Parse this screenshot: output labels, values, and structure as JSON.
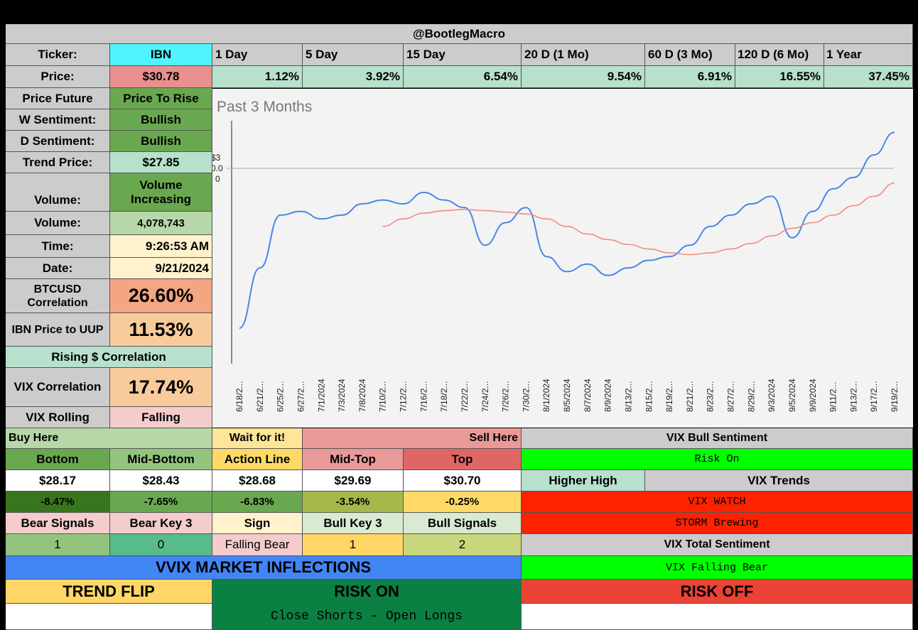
{
  "header": {
    "title": "@BootlegMacro"
  },
  "ticker": {
    "label": "Ticker:",
    "value": "IBN"
  },
  "periods": {
    "labels": [
      "1 Day",
      "5 Day",
      "15 Day",
      "20 D (1 Mo)",
      "60 D (3 Mo)",
      "120 D (6 Mo)",
      "1 Year"
    ],
    "price_label": "Price:",
    "price_value": "$30.78",
    "changes": [
      "1.12%",
      "3.92%",
      "6.54%",
      "9.54%",
      "6.91%",
      "16.55%",
      "37.45%"
    ]
  },
  "left": {
    "price_future_label": "Price Future",
    "price_future_value": "Price To Rise",
    "w_sent_label": "W Sentiment:",
    "w_sent_value": "Bullish",
    "d_sent_label": "D Sentiment:",
    "d_sent_value": "Bullish",
    "trend_label": "Trend Price:",
    "trend_value": "$27.85",
    "vol_trend_label": "Volume:",
    "vol_trend_value": "Volume Increasing",
    "volume_label": "Volume:",
    "volume_value": "4,078,743",
    "time_label": "Time:",
    "time_value": "9:26:53 AM",
    "date_label": "Date:",
    "date_value": "9/21/2024",
    "btc_label": "BTCUSD Correlation",
    "btc_value": "26.60%",
    "uup_label": "IBN Price to UUP",
    "uup_value": "11.53%",
    "rising": "Rising $ Correlation",
    "vix_corr_label": "VIX Correlation",
    "vix_corr_value": "17.74%",
    "vix_roll_label": "VIX Rolling",
    "vix_roll_value": "Falling"
  },
  "levels": {
    "buy_here": "Buy Here",
    "wait": "Wait for it!",
    "sell_here": "Sell Here",
    "names": [
      "Bottom",
      "Mid-Bottom",
      "Action Line",
      "Mid-Top",
      "Top"
    ],
    "prices": [
      "$28.17",
      "$28.43",
      "$28.68",
      "$29.69",
      "$30.70"
    ],
    "pcts": [
      "-8.47%",
      "-7.65%",
      "-6.83%",
      "-3.54%",
      "-0.25%"
    ],
    "signal_names": [
      "Bear Signals",
      "Bear Key 3",
      "Sign",
      "Bull Key 3",
      "Bull Signals"
    ],
    "signal_values": [
      "1",
      "0",
      "Falling Bear",
      "1",
      "2"
    ]
  },
  "vix": {
    "bull_sentiment_label": "VIX Bull Sentiment",
    "risk_on": "Risk On",
    "higher_high": "Higher High",
    "trends_label": "VIX Trends",
    "watch": "VIX WATCH",
    "storm": "STORM Brewing",
    "total_label": "VIX Total Sentiment",
    "falling_bear": "VIX Falling Bear"
  },
  "vvix": {
    "title": "VVIX MARKET INFLECTIONS",
    "trend_flip": "TREND FLIP",
    "risk_on": "RISK ON",
    "risk_off": "RISK OFF",
    "action": "Close Shorts - Open Longs"
  },
  "colors": {
    "ticker": "#4ff4ff",
    "price": "#e88f8f",
    "mint": "#b7e1cd",
    "green": "#6aa84f",
    "light_green": "#b6d7a8",
    "cream": "#fff2cc",
    "salmon": "#f4a582",
    "peach": "#f9cb9c",
    "pink": "#f4cccc",
    "grey": "#cccccc",
    "bright_green": "#00ff00",
    "red": "#ff2200",
    "dark_green": "#0b8043",
    "blue": "#4285f4",
    "yellow": "#ffd666",
    "orange_red": "#ea4335",
    "price_line": "#4a86e8",
    "ma_line": "#f28b82"
  },
  "chart_data": {
    "type": "line",
    "title": "Past 3 Months",
    "y_axis_labels": [
      "$3",
      "0.0",
      "0"
    ],
    "categories": [
      "6/18/2...",
      "6/21/2...",
      "6/25/2...",
      "6/27/2...",
      "7/1/2024",
      "7/3/2024",
      "7/8/2024",
      "7/10/2...",
      "7/12/2...",
      "7/16/2...",
      "7/18/2...",
      "7/22/2...",
      "7/24/2...",
      "7/26/2...",
      "7/30/2...",
      "8/1/2024",
      "8/5/2024",
      "8/7/2024",
      "8/9/2024",
      "8/13/2...",
      "8/15/2...",
      "8/19/2...",
      "8/21/2...",
      "8/23/2...",
      "8/27/2...",
      "8/29/2...",
      "9/3/2024",
      "9/5/2024",
      "9/9/2024",
      "9/11/2...",
      "9/13/2...",
      "9/17/2...",
      "9/19/2..."
    ],
    "series": [
      {
        "values": [
          25.6,
          27.2,
          28.6,
          28.7,
          28.5,
          28.6,
          28.9,
          29.0,
          28.9,
          29.2,
          29.0,
          28.8,
          27.8,
          28.4,
          28.8,
          27.5,
          27.1,
          27.3,
          27.0,
          27.2,
          27.4,
          27.5,
          27.8,
          28.3,
          28.6,
          28.9,
          29.1,
          28.0,
          28.7,
          29.3,
          29.6,
          30.2,
          30.8
        ]
      },
      {
        "values": [
          null,
          null,
          null,
          null,
          null,
          null,
          null,
          28.3,
          28.5,
          28.65,
          28.72,
          28.75,
          28.72,
          28.68,
          28.63,
          28.5,
          28.3,
          28.1,
          27.95,
          27.82,
          27.7,
          27.6,
          27.55,
          27.6,
          27.7,
          27.85,
          28.05,
          28.25,
          28.4,
          28.6,
          28.85,
          29.1,
          29.45
        ]
      }
    ]
  }
}
